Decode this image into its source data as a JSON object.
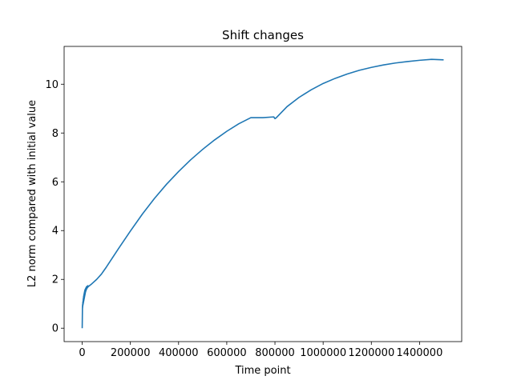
{
  "chart_data": {
    "type": "line",
    "title": "Shift changes",
    "xlabel": "Time point",
    "ylabel": "L2 norm compared with initial value",
    "xlim": [
      -75000,
      1575000
    ],
    "ylim": [
      -0.55,
      11.55
    ],
    "xticks": [
      0,
      200000,
      400000,
      600000,
      800000,
      1000000,
      1200000,
      1400000
    ],
    "xtick_labels": [
      "0",
      "200000",
      "400000",
      "600000",
      "800000",
      "1000000",
      "1200000",
      "1400000"
    ],
    "yticks": [
      0,
      2,
      4,
      6,
      8,
      10
    ],
    "ytick_labels": [
      "0",
      "2",
      "4",
      "6",
      "8",
      "10"
    ],
    "grid": false,
    "legend": "none",
    "series": [
      {
        "color": "#1f77b4",
        "x": [
          0,
          1000,
          2000,
          3000,
          5000,
          8000,
          12000,
          18000,
          25000,
          40000,
          60000,
          80000,
          100000,
          150000,
          200000,
          250000,
          300000,
          350000,
          400000,
          450000,
          500000,
          550000,
          600000,
          650000,
          700000,
          750000,
          795000,
          800000,
          805000,
          850000,
          900000,
          950000,
          1000000,
          1050000,
          1100000,
          1150000,
          1200000,
          1250000,
          1300000,
          1350000,
          1400000,
          1450000,
          1500000
        ],
        "y": [
          0.0,
          0.8,
          0.95,
          1.05,
          1.2,
          1.35,
          1.5,
          1.62,
          1.7,
          1.82,
          2.0,
          2.22,
          2.5,
          3.25,
          3.98,
          4.68,
          5.32,
          5.9,
          6.42,
          6.9,
          7.33,
          7.72,
          8.07,
          8.38,
          8.63,
          8.63,
          8.66,
          8.59,
          8.62,
          9.08,
          9.46,
          9.77,
          10.03,
          10.24,
          10.42,
          10.57,
          10.69,
          10.79,
          10.87,
          10.93,
          10.98,
          11.02,
          11.0
        ]
      }
    ],
    "noise_band": {
      "x": [
        1000,
        2000,
        3000,
        4000,
        5000,
        6000,
        7000,
        8000,
        9000,
        10000,
        11000,
        12000,
        13000,
        14000,
        15000,
        16000,
        17000,
        18000,
        19000,
        20000,
        22000,
        24000
      ],
      "y_low": [
        0.75,
        0.85,
        0.9,
        0.95,
        1.0,
        1.05,
        1.1,
        1.15,
        1.2,
        1.25,
        1.3,
        1.35,
        1.4,
        1.45,
        1.5,
        1.52,
        1.55,
        1.58,
        1.6,
        1.62,
        1.66,
        1.7
      ],
      "y_high": [
        0.95,
        1.05,
        1.1,
        1.2,
        1.3,
        1.35,
        1.4,
        1.45,
        1.5,
        1.55,
        1.58,
        1.6,
        1.62,
        1.64,
        1.66,
        1.68,
        1.7,
        1.7,
        1.72,
        1.72,
        1.74,
        1.75
      ]
    }
  }
}
